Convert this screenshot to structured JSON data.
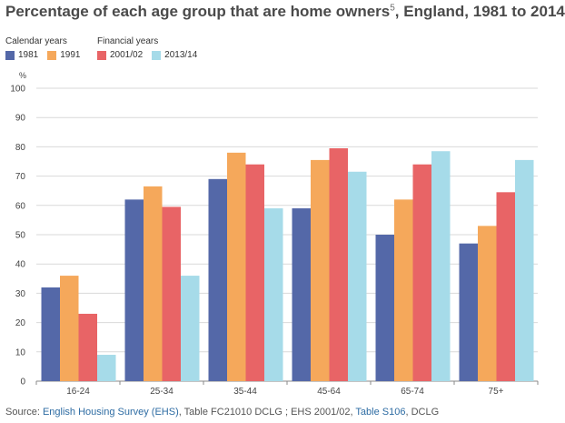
{
  "title": {
    "text": "Percentage of each age group that are home owners",
    "superscript": "5",
    "suffix": ", England, 1981 to 2014"
  },
  "legend": {
    "groups": [
      {
        "title": "Calendar years",
        "items": [
          {
            "label": "1981",
            "color": "#5468a8"
          },
          {
            "label": "1991",
            "color": "#f5a85b"
          }
        ]
      },
      {
        "title": "Financial years",
        "items": [
          {
            "label": "2001/02",
            "color": "#e86466"
          },
          {
            "label": "2013/14",
            "color": "#a6dbe9"
          }
        ]
      }
    ]
  },
  "source": {
    "prefix": "Source: ",
    "link1": "English Housing Survey (EHS)",
    "text2": ", Table FC21010 DCLG ; EHS 2001/02, ",
    "link2": "Table S106",
    "text3": ", DCLG"
  },
  "chart_data": {
    "type": "bar",
    "ylabel": "%",
    "ylim": [
      0,
      100
    ],
    "yticks": [
      0,
      10,
      20,
      30,
      40,
      50,
      60,
      70,
      80,
      90,
      100
    ],
    "grid": true,
    "legend_position": "top-left",
    "categories": [
      "16-24",
      "25-34",
      "35-44",
      "45-64",
      "65-74",
      "75+"
    ],
    "series": [
      {
        "name": "1981",
        "color": "#5468a8",
        "values": [
          32,
          62,
          69,
          59,
          50,
          47
        ]
      },
      {
        "name": "1991",
        "color": "#f5a85b",
        "values": [
          36,
          66.5,
          78,
          75.5,
          62,
          53
        ]
      },
      {
        "name": "2001/02",
        "color": "#e86466",
        "values": [
          23,
          59.5,
          74,
          79.5,
          74,
          64.5
        ]
      },
      {
        "name": "2013/14",
        "color": "#a6dbe9",
        "values": [
          9,
          36,
          59,
          71.5,
          78.5,
          75.5
        ]
      }
    ]
  }
}
